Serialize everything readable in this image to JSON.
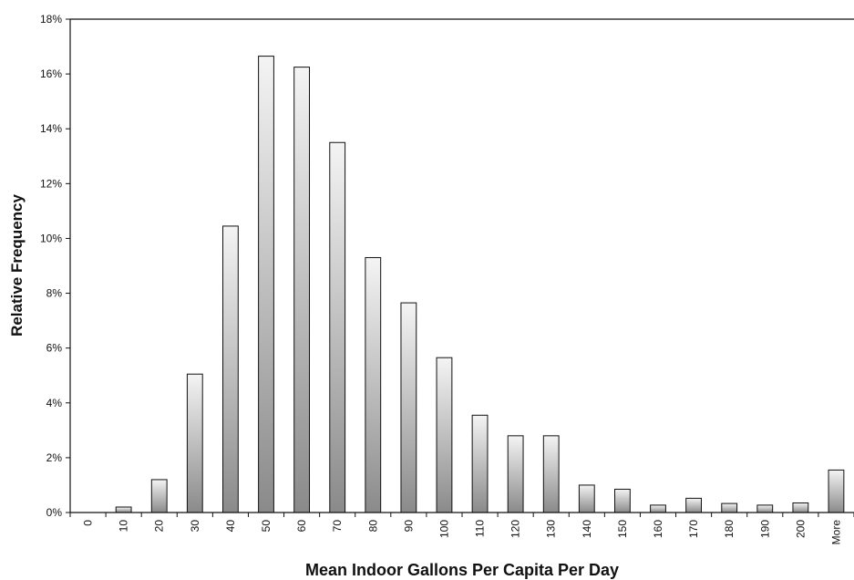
{
  "chart_data": {
    "type": "bar",
    "title": "",
    "xlabel": "Mean Indoor Gallons Per Capita Per Day",
    "ylabel": "Relative Frequency",
    "categories": [
      "0",
      "10",
      "20",
      "30",
      "40",
      "50",
      "60",
      "70",
      "80",
      "90",
      "100",
      "110",
      "120",
      "130",
      "140",
      "150",
      "160",
      "170",
      "180",
      "190",
      "200",
      "More"
    ],
    "values": [
      0,
      0.2,
      1.2,
      5.05,
      10.45,
      16.65,
      16.25,
      13.5,
      9.3,
      7.65,
      5.65,
      3.55,
      2.8,
      2.8,
      1.0,
      0.85,
      0.27,
      0.52,
      0.33,
      0.27,
      0.35,
      1.55
    ],
    "value_format": "percent",
    "ylim": [
      0,
      18
    ],
    "yticks": [
      0,
      2,
      4,
      6,
      8,
      10,
      12,
      14,
      16,
      18
    ],
    "ytick_labels": [
      "0%",
      "2%",
      "4%",
      "6%",
      "8%",
      "10%",
      "12%",
      "14%",
      "16%",
      "18%"
    ],
    "grid": false,
    "legend": "none",
    "colors": {
      "bar_light": "#f4f4f4",
      "bar_dark": "#8a8a8a",
      "bar_stroke": "#111111",
      "axis": "#111111",
      "text": "#111111"
    }
  }
}
